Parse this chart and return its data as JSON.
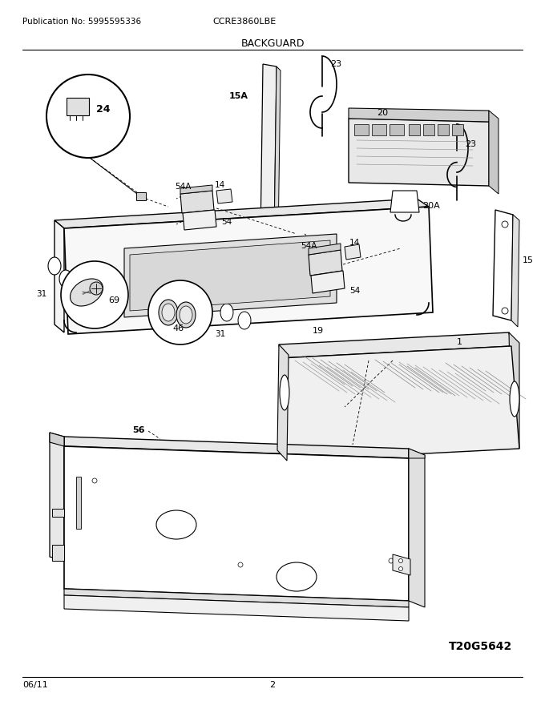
{
  "title": "CCRE3860LBE",
  "section": "BACKGUARD",
  "pub_no": "Publication No: 5995595336",
  "date": "06/11",
  "page": "2",
  "diagram_id": "T20G5642",
  "bg_color": "#ffffff",
  "fig_width": 6.8,
  "fig_height": 8.8,
  "dpi": 100
}
